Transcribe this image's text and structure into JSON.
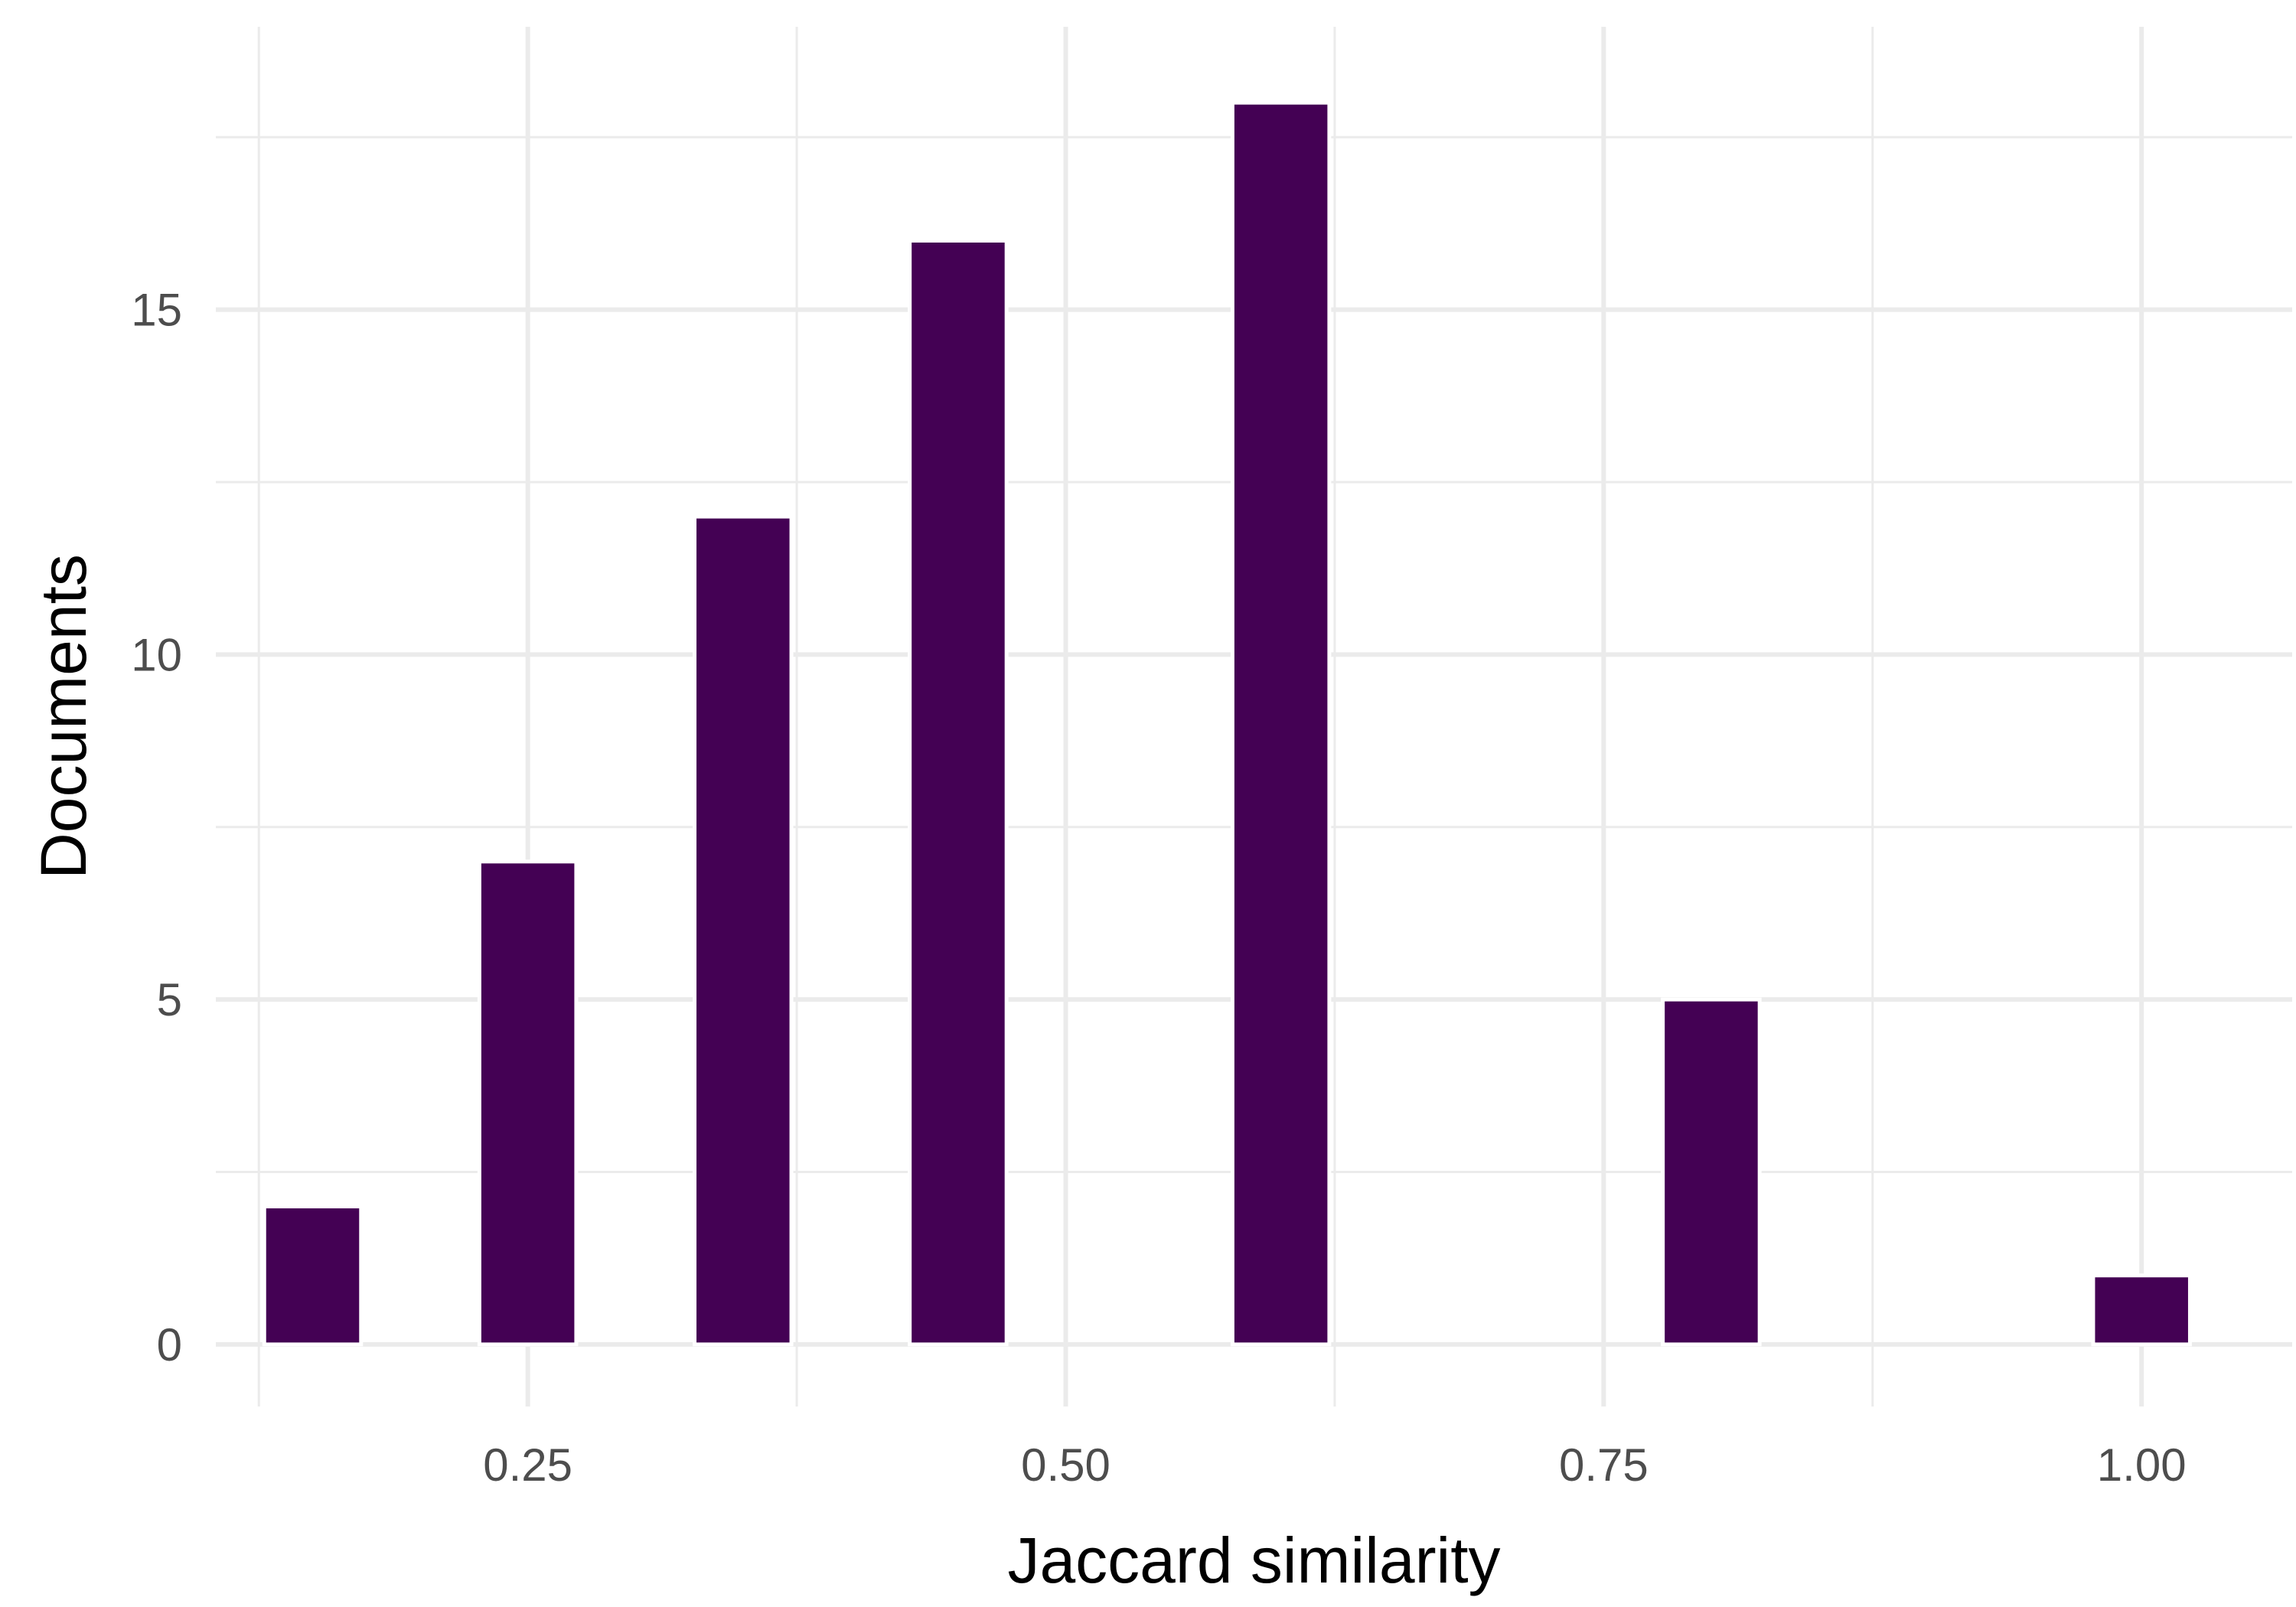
{
  "chart_data": {
    "type": "bar",
    "x": [
      0.15,
      0.25,
      0.35,
      0.45,
      0.6,
      0.8,
      1.0
    ],
    "values": [
      2,
      7,
      12,
      16,
      18,
      5,
      1
    ],
    "bar_width": 0.045,
    "xlabel": "Jaccard similarity",
    "ylabel": "Documents",
    "xlim": [
      0.105,
      1.07
    ],
    "ylim": [
      -0.9,
      19.1
    ],
    "x_ticks": [
      0.25,
      0.5,
      0.75,
      1.0
    ],
    "x_tick_labels": [
      "0.25",
      "0.50",
      "0.75",
      "1.00"
    ],
    "x_minor_ticks": [
      0.125,
      0.375,
      0.625,
      0.875
    ],
    "y_ticks": [
      0,
      5,
      10,
      15
    ],
    "y_tick_labels": [
      "0",
      "5",
      "10",
      "15"
    ],
    "y_minor_ticks": [
      2.5,
      7.5,
      12.5,
      17.5
    ],
    "grid": true,
    "legend": "none",
    "bar_color": "#440154"
  }
}
